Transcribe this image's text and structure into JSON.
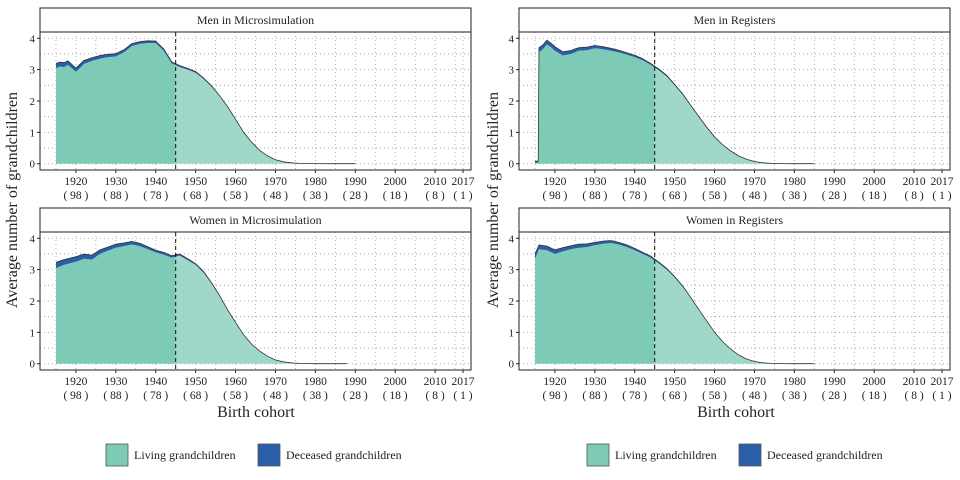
{
  "chart_data": {
    "type": "area",
    "xlabel": "Birth cohort",
    "ylabel": "Average number of grandchildren",
    "xlim": [
      1911,
      2019
    ],
    "ylim": [
      -0.2,
      4.2
    ],
    "x_ticks": [
      1920,
      1930,
      1940,
      1950,
      1960,
      1970,
      1980,
      1990,
      2000,
      2010,
      2017
    ],
    "x_tick_labels": [
      "1920",
      "1930",
      "1940",
      "1950",
      "1960",
      "1970",
      "1980",
      "1990",
      "2000",
      "2010",
      "2017"
    ],
    "x_tick_sublabels": [
      "( 98 )",
      "( 88 )",
      "( 78 )",
      "( 68 )",
      "( 58 )",
      "( 48 )",
      "( 38 )",
      "( 28 )",
      "( 18 )",
      "( 8 )",
      "( 1 )"
    ],
    "y_ticks": [
      0,
      1,
      2,
      3,
      4
    ],
    "y_tick_labels": [
      "0",
      "1",
      "2",
      "3",
      "4"
    ],
    "cutoff_year": 1945,
    "grid": "dotted",
    "legend_position": "bottom",
    "legend": [
      {
        "label": "Living grandchildren",
        "color": "#7dcbb6"
      },
      {
        "label": "Deceased grandchildren",
        "color": "#2b5ea8"
      }
    ],
    "colors": {
      "living_observed": "#7dcbb6",
      "living_projected": "#9fd8c8",
      "deceased": "#2b5ea8",
      "outline": "#333333"
    },
    "panels": [
      {
        "title": "Men in Microsimulation",
        "x": [
          1915,
          1916,
          1917,
          1918,
          1920,
          1921,
          1922,
          1924,
          1926,
          1928,
          1930,
          1932,
          1934,
          1936,
          1938,
          1940,
          1942,
          1944,
          1946,
          1948,
          1950,
          1952,
          1954,
          1956,
          1958,
          1960,
          1962,
          1964,
          1966,
          1968,
          1970,
          1972,
          1974,
          1976,
          1978,
          1980,
          1984,
          1990
        ],
        "living": [
          3.05,
          3.1,
          3.08,
          3.15,
          2.93,
          3.05,
          3.18,
          3.28,
          3.35,
          3.4,
          3.42,
          3.55,
          3.75,
          3.82,
          3.85,
          3.85,
          3.6,
          3.2,
          3.08,
          3.0,
          2.9,
          2.7,
          2.45,
          2.15,
          1.8,
          1.4,
          1.0,
          0.68,
          0.42,
          0.25,
          0.13,
          0.06,
          0.03,
          0.01,
          0.005,
          0.003,
          0.001,
          0.0
        ],
        "deceased": [
          0.15,
          0.14,
          0.14,
          0.13,
          0.12,
          0.12,
          0.11,
          0.1,
          0.1,
          0.09,
          0.09,
          0.08,
          0.08,
          0.07,
          0.07,
          0.06,
          0.06,
          0.05,
          0.05,
          0.04,
          0.04,
          0.03,
          0.03,
          0.02,
          0.02,
          0.02,
          0.01,
          0.01,
          0.01,
          0.0,
          0.0,
          0.0,
          0.0,
          0.0,
          0.0,
          0.0,
          0.0,
          0.0
        ]
      },
      {
        "title": "Men in Registers",
        "x": [
          1915,
          1915.8,
          1916,
          1917,
          1918,
          1919,
          1920,
          1922,
          1924,
          1926,
          1928,
          1930,
          1932,
          1934,
          1936,
          1938,
          1940,
          1942,
          1944,
          1946,
          1948,
          1950,
          1952,
          1954,
          1956,
          1958,
          1960,
          1962,
          1964,
          1966,
          1968,
          1970,
          1972,
          1974,
          1976,
          1980,
          1985
        ],
        "living": [
          0.03,
          0.03,
          3.55,
          3.65,
          3.8,
          3.72,
          3.6,
          3.45,
          3.5,
          3.6,
          3.62,
          3.68,
          3.65,
          3.6,
          3.55,
          3.48,
          3.4,
          3.3,
          3.15,
          2.98,
          2.78,
          2.5,
          2.2,
          1.85,
          1.5,
          1.15,
          0.85,
          0.6,
          0.4,
          0.25,
          0.14,
          0.07,
          0.03,
          0.015,
          0.005,
          0.002,
          0.0
        ],
        "deceased": [
          0.05,
          0.05,
          0.15,
          0.14,
          0.14,
          0.13,
          0.13,
          0.12,
          0.11,
          0.1,
          0.1,
          0.09,
          0.08,
          0.08,
          0.07,
          0.06,
          0.06,
          0.05,
          0.05,
          0.04,
          0.04,
          0.03,
          0.03,
          0.02,
          0.02,
          0.02,
          0.01,
          0.01,
          0.01,
          0.0,
          0.0,
          0.0,
          0.0,
          0.0,
          0.0,
          0.0,
          0.0
        ]
      },
      {
        "title": "Women in Microsimulation",
        "x": [
          1915,
          1917,
          1920,
          1922,
          1924,
          1926,
          1928,
          1930,
          1932,
          1934,
          1936,
          1938,
          1940,
          1942,
          1944,
          1946,
          1948,
          1950,
          1952,
          1954,
          1956,
          1958,
          1960,
          1962,
          1964,
          1966,
          1968,
          1970,
          1972,
          1974,
          1976,
          1978,
          1980,
          1984,
          1988
        ],
        "living": [
          3.05,
          3.15,
          3.25,
          3.35,
          3.32,
          3.5,
          3.6,
          3.7,
          3.75,
          3.8,
          3.75,
          3.65,
          3.55,
          3.48,
          3.38,
          3.45,
          3.3,
          3.15,
          2.9,
          2.55,
          2.15,
          1.7,
          1.3,
          0.92,
          0.62,
          0.4,
          0.24,
          0.12,
          0.06,
          0.025,
          0.01,
          0.004,
          0.002,
          0.001,
          0.0
        ],
        "deceased": [
          0.18,
          0.17,
          0.16,
          0.15,
          0.14,
          0.13,
          0.12,
          0.11,
          0.1,
          0.1,
          0.09,
          0.08,
          0.07,
          0.07,
          0.06,
          0.05,
          0.05,
          0.04,
          0.04,
          0.03,
          0.03,
          0.02,
          0.02,
          0.01,
          0.01,
          0.01,
          0.0,
          0.0,
          0.0,
          0.0,
          0.0,
          0.0,
          0.0,
          0.0,
          0.0
        ]
      },
      {
        "title": "Women in Registers",
        "x": [
          1915,
          1916,
          1918,
          1920,
          1922,
          1924,
          1926,
          1928,
          1930,
          1932,
          1934,
          1936,
          1938,
          1940,
          1942,
          1944,
          1946,
          1948,
          1950,
          1952,
          1954,
          1956,
          1958,
          1960,
          1962,
          1964,
          1966,
          1968,
          1970,
          1972,
          1974,
          1976,
          1980,
          1985
        ],
        "living": [
          3.35,
          3.65,
          3.62,
          3.5,
          3.58,
          3.65,
          3.7,
          3.72,
          3.78,
          3.82,
          3.85,
          3.8,
          3.72,
          3.62,
          3.5,
          3.38,
          3.2,
          3.0,
          2.75,
          2.45,
          2.1,
          1.72,
          1.35,
          1.0,
          0.7,
          0.46,
          0.28,
          0.15,
          0.07,
          0.03,
          0.012,
          0.004,
          0.001,
          0.0
        ],
        "deceased": [
          0.15,
          0.14,
          0.13,
          0.13,
          0.12,
          0.11,
          0.11,
          0.1,
          0.09,
          0.09,
          0.08,
          0.07,
          0.07,
          0.06,
          0.05,
          0.05,
          0.04,
          0.04,
          0.03,
          0.03,
          0.02,
          0.02,
          0.02,
          0.01,
          0.01,
          0.01,
          0.0,
          0.0,
          0.0,
          0.0,
          0.0,
          0.0,
          0.0,
          0.0
        ]
      }
    ]
  }
}
